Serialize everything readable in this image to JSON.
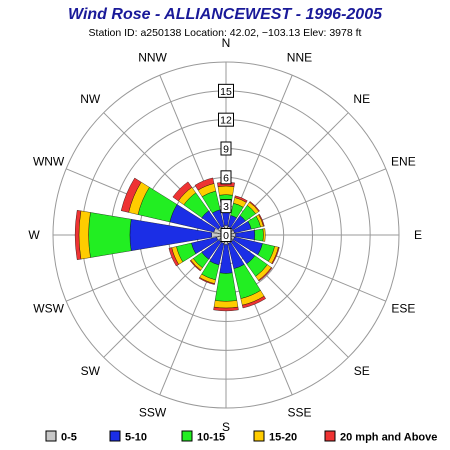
{
  "colors": {
    "title": "#1a1a99",
    "text": "#000000",
    "grid": "#999999",
    "bin_0_5": "#c8c8c8",
    "bin_5_10": "#1b2ee6",
    "bin_10_15": "#22ee22",
    "bin_15_20": "#ffcc00",
    "bin_20_plus": "#ee3333"
  },
  "chart_data": {
    "type": "wind-rose",
    "title": "Wind Rose - ALLIANCEWEST -  1996-2005",
    "subtitle": "Station ID: a250138 Location: 42.02, −103.13 Elev: 3978 ft",
    "radial_max": 18,
    "ring_values": [
      3,
      6,
      9,
      12,
      15
    ],
    "ring_labels": [
      "3",
      "6",
      "9",
      "12",
      "15"
    ],
    "center_label": "0",
    "directions": [
      "N",
      "NNE",
      "NE",
      "ENE",
      "E",
      "ESE",
      "SE",
      "SSE",
      "S",
      "SSW",
      "SW",
      "WSW",
      "W",
      "WNW",
      "NW",
      "NNW"
    ],
    "legend": [
      "0-5",
      "5-10",
      "10-15",
      "15-20",
      "20 mph and Above"
    ],
    "series_keys": [
      "bin_0_5",
      "bin_5_10",
      "bin_10_15",
      "bin_15_20",
      "bin_20_plus"
    ],
    "bins": [
      {
        "name": "0-5",
        "values": [
          1.0,
          0.9,
          0.9,
          0.9,
          1.0,
          0.9,
          0.9,
          0.9,
          1.0,
          0.9,
          0.9,
          1.0,
          1.5,
          1.3,
          1.0,
          0.9
        ]
      },
      {
        "name": "5-10",
        "values": [
          1.5,
          1.2,
          1.6,
          1.8,
          2.0,
          3.0,
          2.8,
          2.7,
          3.0,
          2.3,
          2.2,
          2.7,
          8.5,
          4.7,
          2.1,
          1.8
        ]
      },
      {
        "name": "10-15",
        "values": [
          1.7,
          1.3,
          1.3,
          1.0,
          0.9,
          1.3,
          1.6,
          3.2,
          2.9,
          1.6,
          1.1,
          1.6,
          4.3,
          3.4,
          2.3,
          2.0
        ]
      },
      {
        "name": "15-20",
        "values": [
          0.9,
          0.6,
          0.4,
          0.3,
          0.2,
          0.4,
          0.5,
          0.7,
          0.7,
          0.4,
          0.3,
          0.5,
          1.0,
          1.0,
          0.7,
          0.8
        ]
      },
      {
        "name": "20 mph and Above",
        "values": [
          0.4,
          0.2,
          0.1,
          0.1,
          0.0,
          0.1,
          0.1,
          0.3,
          0.3,
          0.1,
          0.1,
          0.3,
          0.4,
          0.8,
          0.7,
          0.6
        ]
      }
    ]
  }
}
